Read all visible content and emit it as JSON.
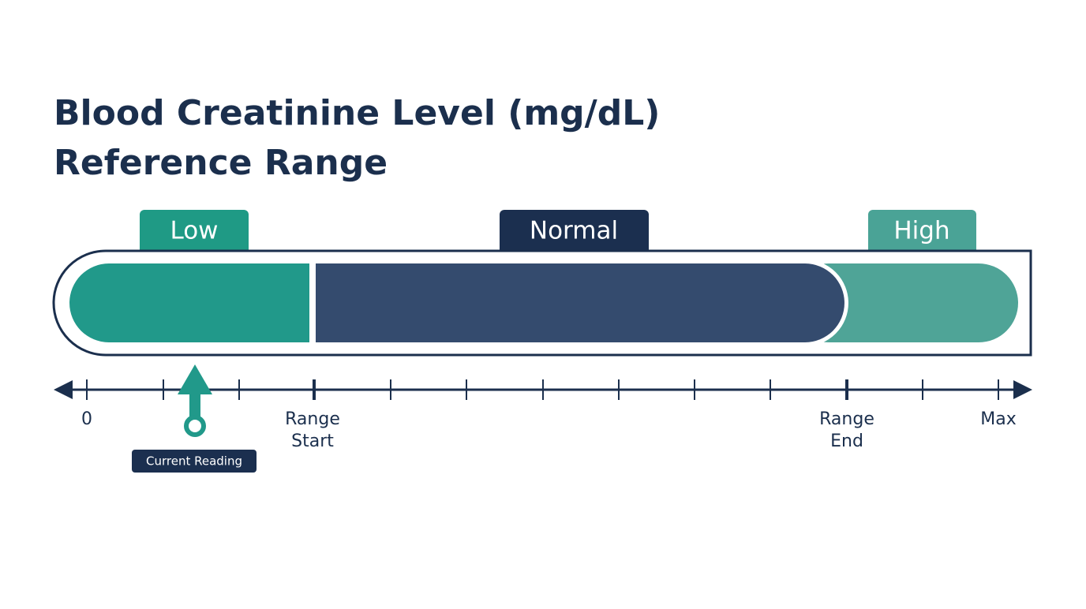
{
  "title": {
    "lines": [
      "Blood Creatinine Level (mg/dL)",
      "Reference Range"
    ]
  },
  "segments": [
    {
      "label": "Low"
    },
    {
      "label": "Normal"
    },
    {
      "label": "High"
    }
  ],
  "axis_labels": [
    {
      "lines": [
        "0"
      ]
    },
    {
      "lines": [
        "Range",
        "Start"
      ]
    },
    {
      "lines": [
        "Range",
        "End"
      ]
    },
    {
      "lines": [
        "Max"
      ]
    }
  ],
  "marker": {
    "label": "Current Reading"
  }
}
